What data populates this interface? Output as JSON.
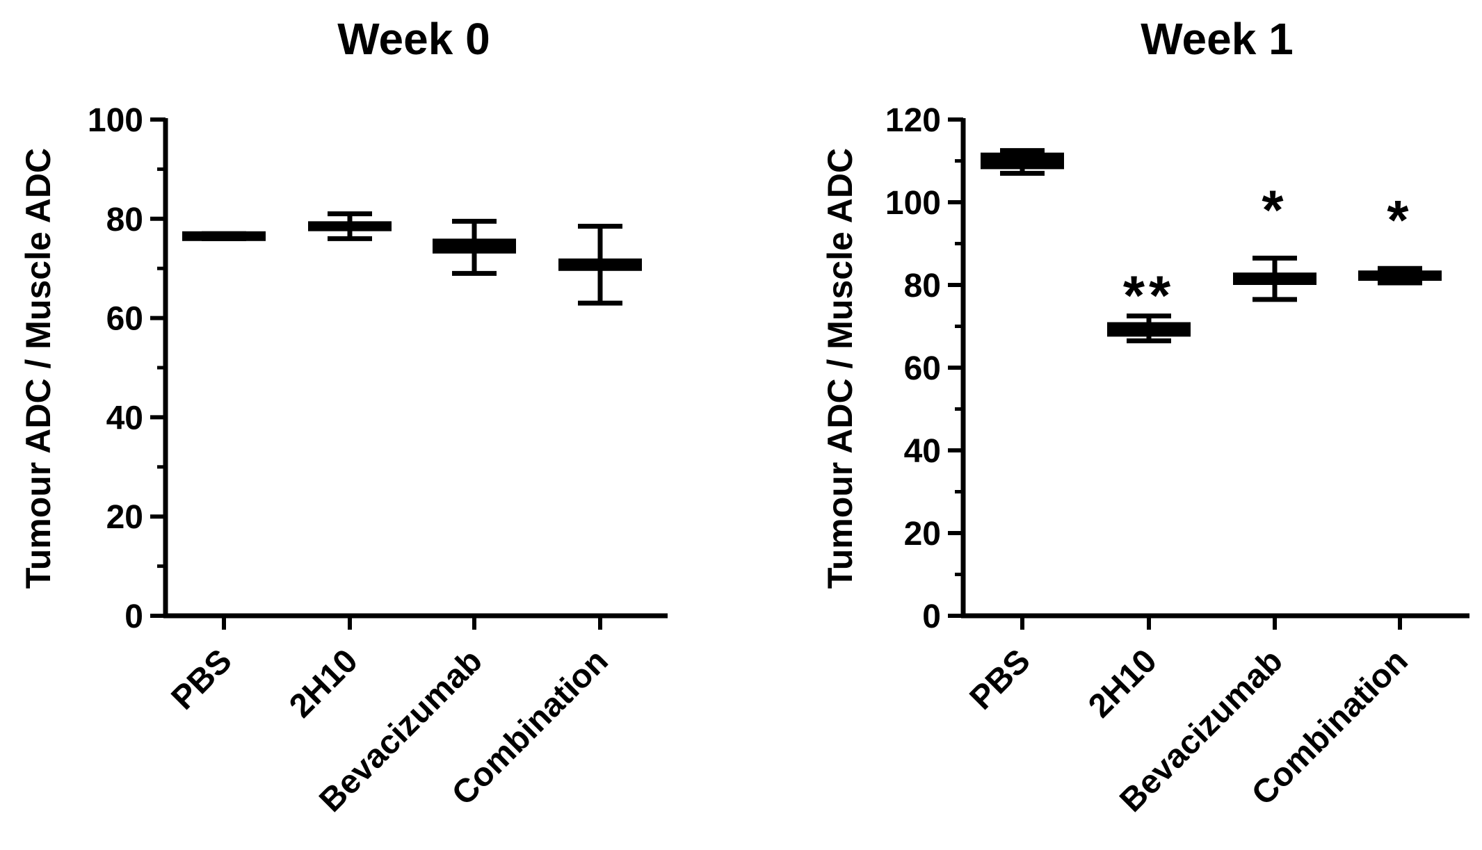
{
  "chart_data": [
    {
      "type": "box",
      "title": "Week 0",
      "xlabel": "",
      "ylabel": "Tumour ADC / Muscle ADC",
      "ylim": [
        0,
        100
      ],
      "yticks": [
        0,
        20,
        40,
        60,
        80,
        100
      ],
      "categories": [
        "PBS",
        "2H10",
        "Bevacizumab",
        "Combination"
      ],
      "boxes": [
        {
          "min": 76,
          "q1": 76,
          "median": 76.5,
          "q3": 77,
          "max": 77
        },
        {
          "min": 76,
          "q1": 77.5,
          "median": 78.5,
          "q3": 79.5,
          "max": 81
        },
        {
          "min": 69,
          "q1": 73,
          "median": 74.5,
          "q3": 76,
          "max": 79.5
        },
        {
          "min": 63,
          "q1": 69.5,
          "median": 70.5,
          "q3": 72,
          "max": 78.5
        }
      ],
      "annotations": [
        "",
        "",
        "",
        ""
      ]
    },
    {
      "type": "box",
      "title": "Week 1",
      "xlabel": "",
      "ylabel": "Tumour ADC / Muscle ADC",
      "ylim": [
        0,
        120
      ],
      "yticks": [
        0,
        20,
        40,
        60,
        80,
        100,
        120
      ],
      "categories": [
        "PBS",
        "2H10",
        "Bevacizumab",
        "Combination"
      ],
      "boxes": [
        {
          "min": 107,
          "q1": 108,
          "median": 110,
          "q3": 112,
          "max": 112.5
        },
        {
          "min": 66.5,
          "q1": 67.5,
          "median": 69,
          "q3": 71,
          "max": 72.5
        },
        {
          "min": 76.5,
          "q1": 80,
          "median": 81.5,
          "q3": 83,
          "max": 86.5
        },
        {
          "min": 80.5,
          "q1": 81,
          "median": 82,
          "q3": 83.5,
          "max": 84
        }
      ],
      "annotations": [
        "",
        "**",
        "*",
        "*"
      ]
    }
  ]
}
